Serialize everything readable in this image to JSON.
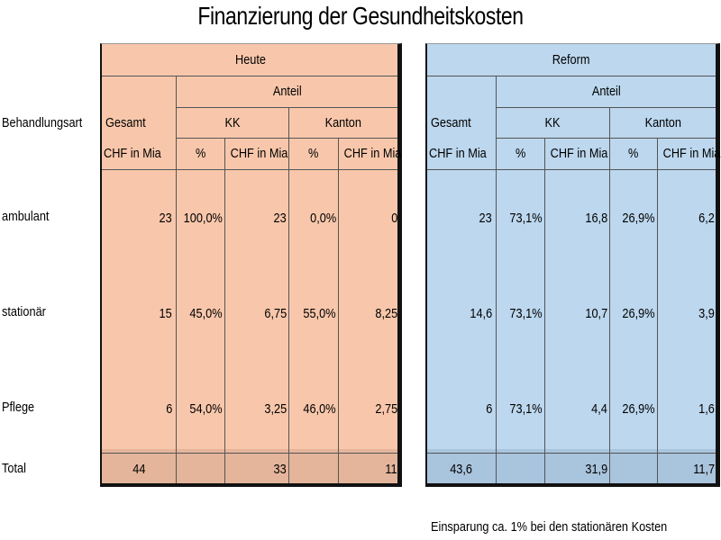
{
  "title": "Finanzierung der Gesundheitskosten",
  "row_header": "Behandlungsart",
  "rows": [
    "ambulant",
    "stationär",
    "Pflege",
    "Total"
  ],
  "heute": {
    "label": "Heute",
    "anteil": "Anteil",
    "gesamt": "Gesamt",
    "kk": "KK",
    "kanton": "Kanton",
    "units": [
      "CHF in Mia",
      "%",
      "CHF in Mia",
      "%",
      "CHF in Mia"
    ],
    "data": [
      [
        "23",
        "100,0%",
        "23",
        "0,0%",
        "0"
      ],
      [
        "15",
        "45,0%",
        "6,75",
        "55,0%",
        "8,25"
      ],
      [
        "6",
        "54,0%",
        "3,25",
        "46,0%",
        "2,75"
      ]
    ],
    "total": [
      "44",
      "",
      "33",
      "",
      "11"
    ]
  },
  "reform": {
    "label": "Reform",
    "anteil": "Anteil",
    "gesamt": "Gesamt",
    "kk": "KK",
    "kanton": "Kanton",
    "units": [
      "CHF in Mia",
      "%",
      "CHF in Mia",
      "%",
      "CHF in Mia"
    ],
    "data": [
      [
        "23",
        "73,1%",
        "16,8",
        "26,9%",
        "6,2"
      ],
      [
        "14,6",
        "73,1%",
        "10,7",
        "26,9%",
        "3,9"
      ],
      [
        "6",
        "73,1%",
        "4,4",
        "26,9%",
        "1,6"
      ]
    ],
    "total": [
      "43,6",
      "",
      "31,9",
      "",
      "11,7"
    ]
  },
  "note": "Einsparung ca. 1% bei den stationären Kosten"
}
